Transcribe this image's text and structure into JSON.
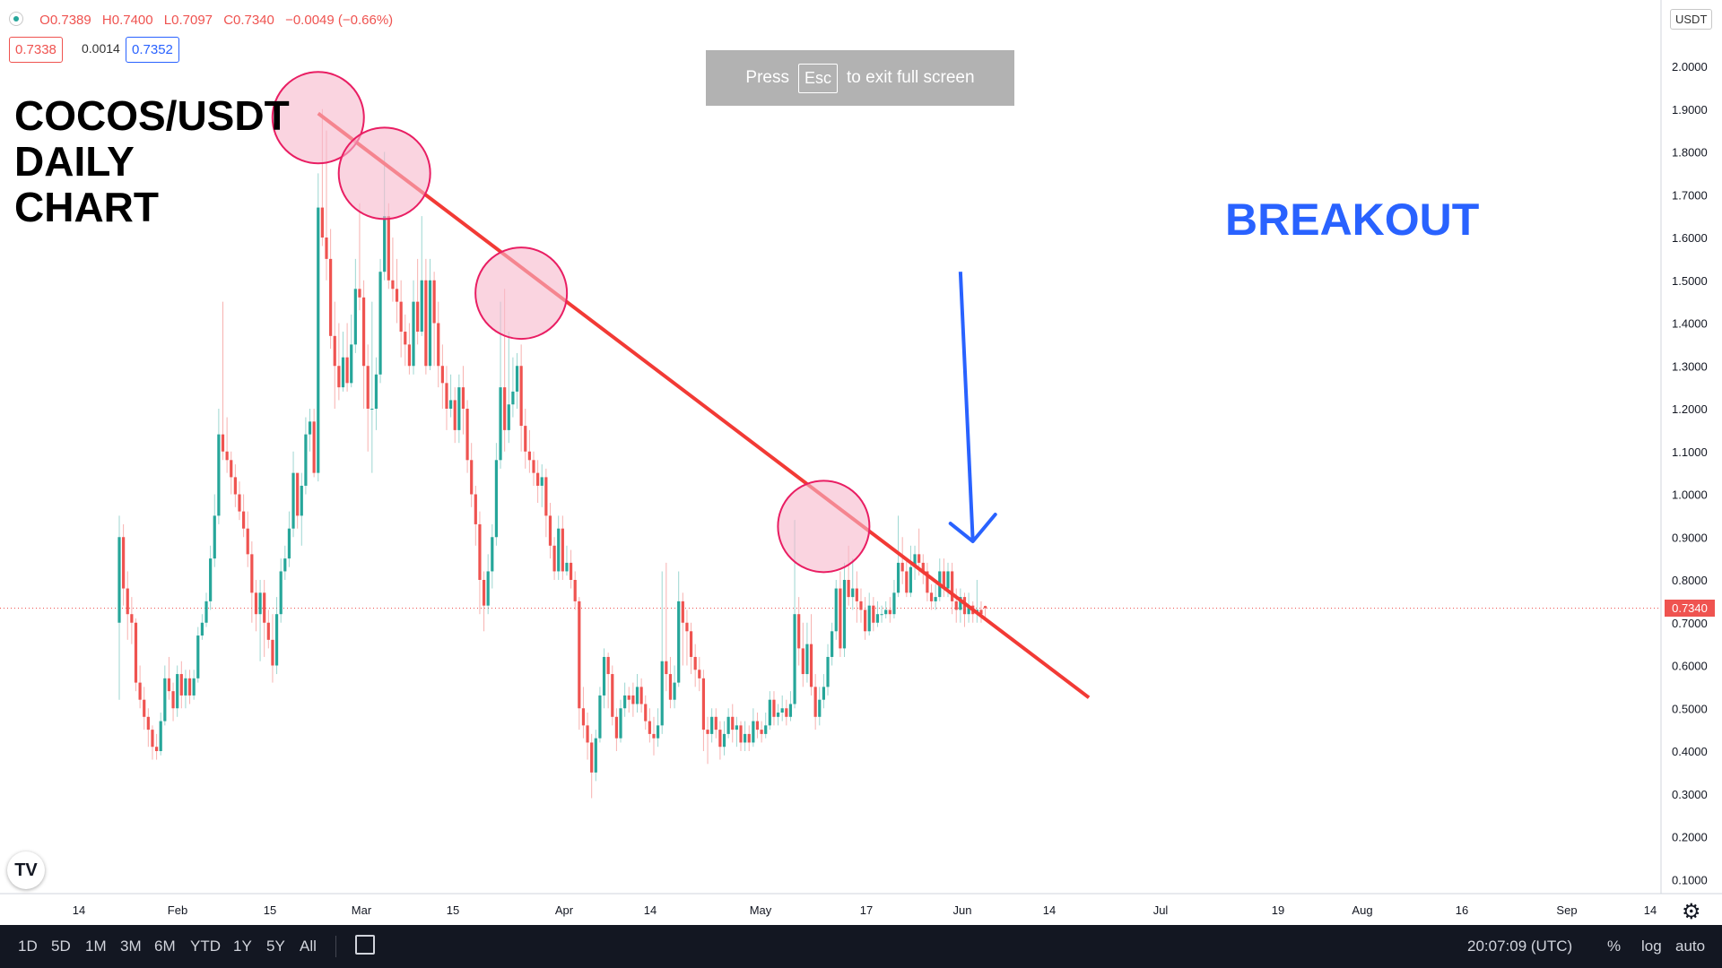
{
  "ohlc": {
    "open_label": "O0.7389",
    "high_label": "H0.7400",
    "low_label": "L0.7097",
    "close_label": "C0.7340",
    "change_label": "−0.0049 (−0.66%)"
  },
  "price_boxes": {
    "bid": "0.7338",
    "spread": "0.0014",
    "ask": "0.7352"
  },
  "title_lines": [
    "COCOS/USDT",
    "DAILY",
    "CHART"
  ],
  "annotation": "BREAKOUT",
  "fullscreen_toast": {
    "pre": "Press",
    "key": "Esc",
    "post": "to exit full screen"
  },
  "currency_badge": "USDT",
  "last_price_label": "0.7340",
  "x_axis_labels": [
    "14",
    "Feb",
    "15",
    "Mar",
    "15",
    "Apr",
    "14",
    "May",
    "17",
    "Jun",
    "14",
    "Jul",
    "19",
    "Aug",
    "16",
    "Sep",
    "14"
  ],
  "y_axis_labels": [
    "2.0000",
    "1.9000",
    "1.8000",
    "1.7000",
    "1.6000",
    "1.5000",
    "1.4000",
    "1.3000",
    "1.2000",
    "1.1000",
    "1.0000",
    "0.9000",
    "0.8000",
    "0.7000",
    "0.6000",
    "0.5000",
    "0.4000",
    "0.3000",
    "0.2000",
    "0.1000"
  ],
  "bottom_bar": {
    "timeframes": [
      "1D",
      "5D",
      "1M",
      "3M",
      "6M",
      "YTD",
      "1Y",
      "5Y",
      "All"
    ],
    "clock": "20:07:09 (UTC)",
    "percent": "%",
    "log": "log",
    "auto": "auto"
  },
  "colors": {
    "up": "#26a69a",
    "down": "#ef5350",
    "trendline": "#f23a35",
    "circle_fill": "#f7b8cc",
    "circle_stroke": "#e91e63",
    "arrow": "#2962ff"
  },
  "chart_data": {
    "type": "candlestick",
    "symbol": "COCOS/USDT",
    "timeframe": "1D",
    "ylim": [
      0.07,
      2.08
    ],
    "y_ticks": [
      2.0,
      1.9,
      1.8,
      1.7,
      1.6,
      1.5,
      1.4,
      1.3,
      1.2,
      1.1,
      1.0,
      0.9,
      0.8,
      0.7,
      0.6,
      0.5,
      0.4,
      0.3,
      0.2,
      0.1
    ],
    "last_price": 0.734,
    "candles": [
      [
        0.7,
        0.9,
        0.95,
        0.52
      ],
      [
        0.9,
        0.78,
        0.93,
        0.74
      ],
      [
        0.78,
        0.72,
        0.82,
        0.66
      ],
      [
        0.72,
        0.7,
        0.76,
        0.65
      ],
      [
        0.7,
        0.56,
        0.71,
        0.54
      ],
      [
        0.56,
        0.52,
        0.6,
        0.5
      ],
      [
        0.52,
        0.48,
        0.55,
        0.45
      ],
      [
        0.48,
        0.45,
        0.5,
        0.41
      ],
      [
        0.45,
        0.41,
        0.46,
        0.38
      ],
      [
        0.41,
        0.4,
        0.44,
        0.38
      ],
      [
        0.4,
        0.47,
        0.49,
        0.39
      ],
      [
        0.47,
        0.57,
        0.6,
        0.46
      ],
      [
        0.57,
        0.54,
        0.62,
        0.52
      ],
      [
        0.54,
        0.5,
        0.56,
        0.47
      ],
      [
        0.5,
        0.58,
        0.6,
        0.48
      ],
      [
        0.58,
        0.53,
        0.61,
        0.5
      ],
      [
        0.53,
        0.57,
        0.59,
        0.5
      ],
      [
        0.57,
        0.53,
        0.59,
        0.51
      ],
      [
        0.53,
        0.57,
        0.59,
        0.52
      ],
      [
        0.57,
        0.67,
        0.69,
        0.56
      ],
      [
        0.67,
        0.7,
        0.72,
        0.66
      ],
      [
        0.7,
        0.75,
        0.77,
        0.69
      ],
      [
        0.75,
        0.85,
        0.88,
        0.73
      ],
      [
        0.85,
        0.95,
        1.0,
        0.83
      ],
      [
        0.95,
        1.14,
        1.2,
        0.93
      ],
      [
        1.14,
        1.1,
        1.45,
        1.08
      ],
      [
        1.1,
        1.08,
        1.18,
        1.05
      ],
      [
        1.08,
        1.04,
        1.1,
        1.0
      ],
      [
        1.04,
        1.0,
        1.07,
        0.97
      ],
      [
        1.0,
        0.96,
        1.03,
        0.94
      ],
      [
        0.96,
        0.92,
        1.0,
        0.9
      ],
      [
        0.92,
        0.86,
        0.96,
        0.83
      ],
      [
        0.86,
        0.77,
        0.89,
        0.7
      ],
      [
        0.77,
        0.72,
        0.8,
        0.68
      ],
      [
        0.72,
        0.77,
        0.8,
        0.61
      ],
      [
        0.77,
        0.7,
        0.8,
        0.62
      ],
      [
        0.7,
        0.66,
        0.73,
        0.64
      ],
      [
        0.66,
        0.6,
        0.72,
        0.56
      ],
      [
        0.6,
        0.72,
        0.76,
        0.58
      ],
      [
        0.72,
        0.82,
        0.85,
        0.7
      ],
      [
        0.82,
        0.85,
        0.88,
        0.8
      ],
      [
        0.85,
        0.92,
        0.96,
        0.83
      ],
      [
        0.92,
        1.05,
        1.1,
        0.9
      ],
      [
        1.05,
        0.95,
        1.0,
        0.92
      ],
      [
        0.95,
        1.02,
        1.05,
        0.88
      ],
      [
        1.02,
        1.14,
        1.18,
        1.0
      ],
      [
        1.14,
        1.17,
        1.2,
        1.1
      ],
      [
        1.17,
        1.05,
        1.2,
        1.04
      ],
      [
        1.05,
        1.67,
        1.75,
        1.03
      ],
      [
        1.67,
        1.6,
        1.9,
        1.58
      ],
      [
        1.6,
        1.55,
        1.85,
        1.5
      ],
      [
        1.55,
        1.37,
        1.62,
        1.34
      ],
      [
        1.37,
        1.3,
        1.45,
        1.2
      ],
      [
        1.3,
        1.25,
        1.4,
        1.22
      ],
      [
        1.25,
        1.32,
        1.38,
        1.24
      ],
      [
        1.32,
        1.26,
        1.4,
        1.24
      ],
      [
        1.26,
        1.35,
        1.42,
        1.25
      ],
      [
        1.35,
        1.48,
        1.55,
        1.33
      ],
      [
        1.48,
        1.46,
        1.68,
        1.43
      ],
      [
        1.46,
        1.3,
        1.5,
        1.2
      ],
      [
        1.3,
        1.2,
        1.35,
        1.1
      ],
      [
        1.2,
        1.2,
        1.45,
        1.05
      ],
      [
        1.2,
        1.28,
        1.32,
        1.15
      ],
      [
        1.28,
        1.52,
        1.55,
        1.26
      ],
      [
        1.52,
        1.65,
        1.8,
        1.5
      ],
      [
        1.65,
        1.5,
        1.68,
        1.48
      ],
      [
        1.5,
        1.48,
        1.6,
        1.45
      ],
      [
        1.48,
        1.45,
        1.55,
        1.4
      ],
      [
        1.45,
        1.38,
        1.5,
        1.32
      ],
      [
        1.38,
        1.35,
        1.42,
        1.3
      ],
      [
        1.35,
        1.3,
        1.4,
        1.28
      ],
      [
        1.3,
        1.45,
        1.5,
        1.28
      ],
      [
        1.45,
        1.38,
        1.55,
        1.35
      ],
      [
        1.38,
        1.5,
        1.65,
        1.37
      ],
      [
        1.5,
        1.3,
        1.55,
        1.28
      ],
      [
        1.3,
        1.5,
        1.55,
        1.29
      ],
      [
        1.5,
        1.4,
        1.52,
        1.3
      ],
      [
        1.4,
        1.3,
        1.45,
        1.25
      ],
      [
        1.3,
        1.26,
        1.35,
        1.2
      ],
      [
        1.26,
        1.2,
        1.3,
        1.15
      ],
      [
        1.2,
        1.22,
        1.28,
        1.18
      ],
      [
        1.22,
        1.15,
        1.25,
        1.12
      ],
      [
        1.15,
        1.25,
        1.28,
        1.12
      ],
      [
        1.25,
        1.2,
        1.3,
        1.14
      ],
      [
        1.2,
        1.08,
        1.22,
        1.05
      ],
      [
        1.08,
        1.0,
        1.12,
        0.97
      ],
      [
        1.0,
        0.93,
        1.02,
        0.88
      ],
      [
        0.93,
        0.8,
        0.96,
        0.72
      ],
      [
        0.8,
        0.74,
        0.82,
        0.68
      ],
      [
        0.74,
        0.82,
        0.86,
        0.72
      ],
      [
        0.82,
        0.9,
        0.93,
        0.78
      ],
      [
        0.9,
        1.08,
        1.12,
        0.88
      ],
      [
        1.08,
        1.25,
        1.45,
        1.06
      ],
      [
        1.25,
        1.15,
        1.48,
        1.1
      ],
      [
        1.15,
        1.21,
        1.38,
        1.12
      ],
      [
        1.21,
        1.24,
        1.32,
        1.18
      ],
      [
        1.24,
        1.3,
        1.33,
        1.2
      ],
      [
        1.3,
        1.16,
        1.35,
        1.1
      ],
      [
        1.16,
        1.1,
        1.2,
        1.06
      ],
      [
        1.1,
        1.08,
        1.15,
        1.05
      ],
      [
        1.08,
        1.05,
        1.1,
        1.02
      ],
      [
        1.05,
        1.02,
        1.08,
        0.98
      ],
      [
        1.02,
        1.04,
        1.07,
        0.97
      ],
      [
        1.04,
        0.95,
        1.06,
        0.9
      ],
      [
        0.95,
        0.88,
        0.98,
        0.85
      ],
      [
        0.88,
        0.82,
        0.9,
        0.8
      ],
      [
        0.82,
        0.92,
        0.95,
        0.8
      ],
      [
        0.92,
        0.82,
        0.95,
        0.8
      ],
      [
        0.82,
        0.84,
        0.88,
        0.81
      ],
      [
        0.84,
        0.8,
        0.87,
        0.78
      ],
      [
        0.8,
        0.75,
        0.82,
        0.73
      ],
      [
        0.75,
        0.5,
        0.76,
        0.45
      ],
      [
        0.5,
        0.46,
        0.55,
        0.43
      ],
      [
        0.46,
        0.42,
        0.49,
        0.38
      ],
      [
        0.42,
        0.35,
        0.44,
        0.29
      ],
      [
        0.35,
        0.43,
        0.45,
        0.33
      ],
      [
        0.43,
        0.53,
        0.55,
        0.42
      ],
      [
        0.53,
        0.62,
        0.64,
        0.5
      ],
      [
        0.62,
        0.58,
        0.63,
        0.5
      ],
      [
        0.58,
        0.48,
        0.6,
        0.46
      ],
      [
        0.48,
        0.43,
        0.5,
        0.4
      ],
      [
        0.43,
        0.5,
        0.52,
        0.42
      ],
      [
        0.5,
        0.53,
        0.56,
        0.48
      ],
      [
        0.53,
        0.52,
        0.55,
        0.49
      ],
      [
        0.53,
        0.51,
        0.56,
        0.48
      ],
      [
        0.51,
        0.55,
        0.58,
        0.49
      ],
      [
        0.55,
        0.51,
        0.57,
        0.49
      ],
      [
        0.51,
        0.47,
        0.53,
        0.45
      ],
      [
        0.47,
        0.44,
        0.5,
        0.42
      ],
      [
        0.44,
        0.43,
        0.48,
        0.39
      ],
      [
        0.43,
        0.46,
        0.5,
        0.41
      ],
      [
        0.46,
        0.61,
        0.82,
        0.44
      ],
      [
        0.61,
        0.58,
        0.84,
        0.54
      ],
      [
        0.58,
        0.52,
        0.62,
        0.5
      ],
      [
        0.52,
        0.56,
        0.6,
        0.5
      ],
      [
        0.56,
        0.75,
        0.82,
        0.55
      ],
      [
        0.75,
        0.7,
        0.77,
        0.6
      ],
      [
        0.7,
        0.68,
        0.73,
        0.6
      ],
      [
        0.68,
        0.62,
        0.7,
        0.58
      ],
      [
        0.62,
        0.59,
        0.65,
        0.55
      ],
      [
        0.59,
        0.57,
        0.62,
        0.54
      ],
      [
        0.57,
        0.45,
        0.59,
        0.4
      ],
      [
        0.45,
        0.44,
        0.48,
        0.37
      ],
      [
        0.44,
        0.48,
        0.5,
        0.42
      ],
      [
        0.48,
        0.45,
        0.5,
        0.43
      ],
      [
        0.45,
        0.41,
        0.47,
        0.38
      ],
      [
        0.41,
        0.44,
        0.47,
        0.39
      ],
      [
        0.44,
        0.48,
        0.5,
        0.43
      ],
      [
        0.48,
        0.45,
        0.51,
        0.42
      ],
      [
        0.45,
        0.46,
        0.48,
        0.41
      ],
      [
        0.46,
        0.42,
        0.47,
        0.4
      ],
      [
        0.42,
        0.44,
        0.47,
        0.4
      ],
      [
        0.44,
        0.42,
        0.46,
        0.4
      ],
      [
        0.42,
        0.47,
        0.5,
        0.41
      ],
      [
        0.47,
        0.45,
        0.49,
        0.43
      ],
      [
        0.45,
        0.44,
        0.47,
        0.42
      ],
      [
        0.44,
        0.46,
        0.49,
        0.43
      ],
      [
        0.46,
        0.52,
        0.54,
        0.45
      ],
      [
        0.52,
        0.48,
        0.54,
        0.46
      ],
      [
        0.48,
        0.49,
        0.51,
        0.46
      ],
      [
        0.49,
        0.5,
        0.53,
        0.47
      ],
      [
        0.5,
        0.48,
        0.52,
        0.46
      ],
      [
        0.48,
        0.51,
        0.54,
        0.47
      ],
      [
        0.51,
        0.72,
        0.94,
        0.5
      ],
      [
        0.72,
        0.64,
        0.76,
        0.6
      ],
      [
        0.64,
        0.58,
        0.7,
        0.55
      ],
      [
        0.58,
        0.65,
        0.7,
        0.56
      ],
      [
        0.65,
        0.55,
        0.72,
        0.53
      ],
      [
        0.55,
        0.48,
        0.58,
        0.45
      ],
      [
        0.48,
        0.52,
        0.55,
        0.46
      ],
      [
        0.52,
        0.55,
        0.58,
        0.5
      ],
      [
        0.55,
        0.62,
        0.65,
        0.53
      ],
      [
        0.62,
        0.68,
        0.7,
        0.6
      ],
      [
        0.68,
        0.78,
        0.8,
        0.66
      ],
      [
        0.78,
        0.64,
        0.82,
        0.62
      ],
      [
        0.64,
        0.8,
        0.84,
        0.62
      ],
      [
        0.8,
        0.76,
        0.88,
        0.74
      ],
      [
        0.76,
        0.78,
        0.85,
        0.73
      ],
      [
        0.78,
        0.75,
        0.82,
        0.7
      ],
      [
        0.75,
        0.73,
        0.78,
        0.7
      ],
      [
        0.73,
        0.68,
        0.76,
        0.66
      ],
      [
        0.68,
        0.74,
        0.77,
        0.67
      ],
      [
        0.74,
        0.7,
        0.76,
        0.68
      ],
      [
        0.7,
        0.72,
        0.75,
        0.69
      ],
      [
        0.72,
        0.72,
        0.74,
        0.7
      ],
      [
        0.72,
        0.73,
        0.75,
        0.71
      ],
      [
        0.73,
        0.72,
        0.76,
        0.7
      ],
      [
        0.72,
        0.77,
        0.8,
        0.71
      ],
      [
        0.77,
        0.84,
        0.95,
        0.76
      ],
      [
        0.84,
        0.82,
        0.9,
        0.79
      ],
      [
        0.82,
        0.77,
        0.85,
        0.76
      ],
      [
        0.77,
        0.83,
        0.88,
        0.76
      ],
      [
        0.83,
        0.86,
        0.88,
        0.8
      ],
      [
        0.86,
        0.84,
        0.92,
        0.81
      ],
      [
        0.84,
        0.82,
        0.86,
        0.79
      ],
      [
        0.82,
        0.77,
        0.84,
        0.75
      ],
      [
        0.77,
        0.75,
        0.79,
        0.73
      ],
      [
        0.75,
        0.76,
        0.79,
        0.73
      ],
      [
        0.76,
        0.82,
        0.85,
        0.75
      ],
      [
        0.82,
        0.78,
        0.85,
        0.76
      ],
      [
        0.78,
        0.82,
        0.84,
        0.76
      ],
      [
        0.82,
        0.75,
        0.84,
        0.72
      ],
      [
        0.75,
        0.73,
        0.78,
        0.7
      ],
      [
        0.73,
        0.76,
        0.78,
        0.7
      ],
      [
        0.76,
        0.72,
        0.77,
        0.69
      ],
      [
        0.72,
        0.74,
        0.77,
        0.7
      ],
      [
        0.74,
        0.72,
        0.75,
        0.7
      ],
      [
        0.72,
        0.73,
        0.8,
        0.7
      ],
      [
        0.73,
        0.72,
        0.75,
        0.7
      ],
      [
        0.7389,
        0.734,
        0.74,
        0.7097
      ]
    ],
    "trendline": {
      "from": {
        "candle": 48,
        "price": 1.89
      },
      "to": {
        "candle": 234,
        "price": 0.525
      }
    },
    "touch_circles": [
      {
        "candle": 48,
        "price": 1.88
      },
      {
        "candle": 64,
        "price": 1.75
      },
      {
        "candle": 97,
        "price": 1.47
      },
      {
        "candle": 170,
        "price": 0.925
      }
    ],
    "arrow": {
      "from": {
        "candle": 203,
        "price": 1.52
      },
      "to": {
        "candle": 206,
        "price": 0.89
      }
    }
  }
}
